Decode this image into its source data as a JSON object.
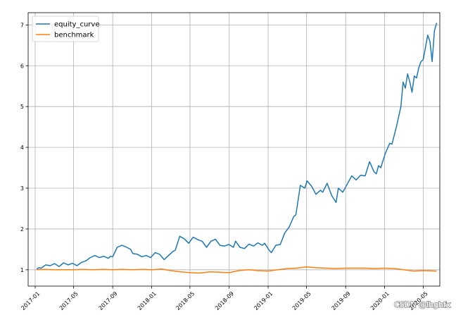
{
  "chart_data": {
    "type": "line",
    "title": "",
    "xlabel": "",
    "ylabel": "",
    "xlim": [
      "2016-12-10",
      "2020-06-22"
    ],
    "ylim": [
      0.6,
      7.3
    ],
    "grid": true,
    "legend_position": "top-left",
    "x_ticks": [
      {
        "date": "2017-01-01",
        "label": "2017-01"
      },
      {
        "date": "2017-05-01",
        "label": "2017-05"
      },
      {
        "date": "2017-09-01",
        "label": "2017-09"
      },
      {
        "date": "2018-01-01",
        "label": "2018-01"
      },
      {
        "date": "2018-05-01",
        "label": "2018-05"
      },
      {
        "date": "2018-09-01",
        "label": "2018-09"
      },
      {
        "date": "2019-01-01",
        "label": "2019-01"
      },
      {
        "date": "2019-05-01",
        "label": "2019-05"
      },
      {
        "date": "2019-09-01",
        "label": "2019-09"
      },
      {
        "date": "2020-01-01",
        "label": "2020-01"
      },
      {
        "date": "2020-05-01",
        "label": "2020-05"
      }
    ],
    "y_ticks": [
      1,
      2,
      3,
      4,
      5,
      6,
      7
    ],
    "series": [
      {
        "name": "equity_curve",
        "color": "#1f77b4",
        "points": [
          [
            "2017-01-06",
            1.02
          ],
          [
            "2017-01-13",
            1.05
          ],
          [
            "2017-01-20",
            1.04
          ],
          [
            "2017-02-03",
            1.12
          ],
          [
            "2017-02-17",
            1.1
          ],
          [
            "2017-03-03",
            1.15
          ],
          [
            "2017-03-17",
            1.08
          ],
          [
            "2017-03-31",
            1.17
          ],
          [
            "2017-04-14",
            1.12
          ],
          [
            "2017-04-28",
            1.16
          ],
          [
            "2017-05-12",
            1.1
          ],
          [
            "2017-05-26",
            1.18
          ],
          [
            "2017-06-09",
            1.22
          ],
          [
            "2017-06-23",
            1.3
          ],
          [
            "2017-07-07",
            1.35
          ],
          [
            "2017-07-21",
            1.3
          ],
          [
            "2017-08-04",
            1.33
          ],
          [
            "2017-08-18",
            1.28
          ],
          [
            "2017-08-25",
            1.33
          ],
          [
            "2017-09-01",
            1.32
          ],
          [
            "2017-09-15",
            1.55
          ],
          [
            "2017-09-29",
            1.6
          ],
          [
            "2017-10-13",
            1.56
          ],
          [
            "2017-10-27",
            1.5
          ],
          [
            "2017-11-03",
            1.4
          ],
          [
            "2017-11-17",
            1.38
          ],
          [
            "2017-12-01",
            1.32
          ],
          [
            "2017-12-15",
            1.35
          ],
          [
            "2017-12-29",
            1.3
          ],
          [
            "2018-01-12",
            1.42
          ],
          [
            "2018-01-26",
            1.38
          ],
          [
            "2018-02-09",
            1.25
          ],
          [
            "2018-02-23",
            1.35
          ],
          [
            "2018-03-09",
            1.45
          ],
          [
            "2018-03-16",
            1.48
          ],
          [
            "2018-03-30",
            1.82
          ],
          [
            "2018-04-13",
            1.76
          ],
          [
            "2018-04-27",
            1.65
          ],
          [
            "2018-05-11",
            1.8
          ],
          [
            "2018-05-25",
            1.74
          ],
          [
            "2018-06-08",
            1.7
          ],
          [
            "2018-06-22",
            1.55
          ],
          [
            "2018-07-06",
            1.7
          ],
          [
            "2018-07-20",
            1.75
          ],
          [
            "2018-08-03",
            1.6
          ],
          [
            "2018-08-17",
            1.58
          ],
          [
            "2018-08-31",
            1.62
          ],
          [
            "2018-09-14",
            1.55
          ],
          [
            "2018-09-21",
            1.7
          ],
          [
            "2018-10-05",
            1.55
          ],
          [
            "2018-10-19",
            1.52
          ],
          [
            "2018-11-02",
            1.63
          ],
          [
            "2018-11-16",
            1.58
          ],
          [
            "2018-11-30",
            1.66
          ],
          [
            "2018-12-14",
            1.6
          ],
          [
            "2018-12-21",
            1.65
          ],
          [
            "2019-01-04",
            1.48
          ],
          [
            "2019-01-11",
            1.42
          ],
          [
            "2019-01-25",
            1.6
          ],
          [
            "2019-02-08",
            1.62
          ],
          [
            "2019-02-22",
            1.9
          ],
          [
            "2019-03-08",
            2.05
          ],
          [
            "2019-03-22",
            2.3
          ],
          [
            "2019-03-29",
            2.35
          ],
          [
            "2019-04-12",
            3.07
          ],
          [
            "2019-04-26",
            3.0
          ],
          [
            "2019-05-03",
            3.18
          ],
          [
            "2019-05-17",
            3.05
          ],
          [
            "2019-05-31",
            2.85
          ],
          [
            "2019-06-14",
            2.95
          ],
          [
            "2019-06-21",
            2.9
          ],
          [
            "2019-07-05",
            3.12
          ],
          [
            "2019-07-19",
            2.82
          ],
          [
            "2019-08-02",
            2.65
          ],
          [
            "2019-08-09",
            3.0
          ],
          [
            "2019-08-23",
            2.9
          ],
          [
            "2019-09-06",
            3.1
          ],
          [
            "2019-09-20",
            3.3
          ],
          [
            "2019-10-04",
            3.2
          ],
          [
            "2019-10-18",
            3.32
          ],
          [
            "2019-11-01",
            3.3
          ],
          [
            "2019-11-15",
            3.65
          ],
          [
            "2019-11-29",
            3.4
          ],
          [
            "2019-12-06",
            3.35
          ],
          [
            "2019-12-13",
            3.55
          ],
          [
            "2019-12-20",
            3.5
          ],
          [
            "2020-01-03",
            3.85
          ],
          [
            "2020-01-17",
            4.1
          ],
          [
            "2020-01-24",
            4.08
          ],
          [
            "2020-02-07",
            4.5
          ],
          [
            "2020-02-21",
            5.0
          ],
          [
            "2020-02-28",
            5.6
          ],
          [
            "2020-03-06",
            5.45
          ],
          [
            "2020-03-13",
            5.8
          ],
          [
            "2020-03-20",
            5.6
          ],
          [
            "2020-03-27",
            5.35
          ],
          [
            "2020-04-03",
            5.75
          ],
          [
            "2020-04-10",
            5.7
          ],
          [
            "2020-04-17",
            5.95
          ],
          [
            "2020-04-24",
            6.1
          ],
          [
            "2020-05-01",
            6.15
          ],
          [
            "2020-05-08",
            6.45
          ],
          [
            "2020-05-15",
            6.75
          ],
          [
            "2020-05-22",
            6.6
          ],
          [
            "2020-05-29",
            6.1
          ],
          [
            "2020-06-05",
            6.85
          ],
          [
            "2020-06-12",
            7.05
          ]
        ]
      },
      {
        "name": "benchmark",
        "color": "#ff7f0e",
        "points": [
          [
            "2017-01-06",
            1.0
          ],
          [
            "2017-02-01",
            1.01
          ],
          [
            "2017-03-01",
            1.0
          ],
          [
            "2017-04-01",
            1.0
          ],
          [
            "2017-05-01",
            1.0
          ],
          [
            "2017-06-01",
            1.01
          ],
          [
            "2017-07-01",
            1.0
          ],
          [
            "2017-08-01",
            1.01
          ],
          [
            "2017-09-01",
            1.0
          ],
          [
            "2017-10-01",
            1.01
          ],
          [
            "2017-11-01",
            1.0
          ],
          [
            "2017-12-01",
            1.01
          ],
          [
            "2018-01-01",
            1.0
          ],
          [
            "2018-02-01",
            1.02
          ],
          [
            "2018-03-01",
            0.98
          ],
          [
            "2018-04-01",
            0.95
          ],
          [
            "2018-05-01",
            0.93
          ],
          [
            "2018-06-01",
            0.92
          ],
          [
            "2018-07-01",
            0.95
          ],
          [
            "2018-08-01",
            0.94
          ],
          [
            "2018-09-01",
            0.93
          ],
          [
            "2018-10-01",
            0.98
          ],
          [
            "2018-11-01",
            1.0
          ],
          [
            "2018-12-01",
            0.98
          ],
          [
            "2019-01-01",
            0.97
          ],
          [
            "2019-02-01",
            1.0
          ],
          [
            "2019-03-01",
            1.03
          ],
          [
            "2019-04-01",
            1.04
          ],
          [
            "2019-05-01",
            1.07
          ],
          [
            "2019-06-01",
            1.05
          ],
          [
            "2019-07-01",
            1.04
          ],
          [
            "2019-08-01",
            1.03
          ],
          [
            "2019-09-01",
            1.04
          ],
          [
            "2019-10-01",
            1.04
          ],
          [
            "2019-11-01",
            1.04
          ],
          [
            "2019-12-01",
            1.03
          ],
          [
            "2020-01-01",
            1.04
          ],
          [
            "2020-02-01",
            1.03
          ],
          [
            "2020-03-01",
            1.0
          ],
          [
            "2020-04-01",
            0.97
          ],
          [
            "2020-05-01",
            0.98
          ],
          [
            "2020-06-12",
            0.97
          ]
        ]
      }
    ]
  },
  "watermark": "CSDN @lhghfx"
}
